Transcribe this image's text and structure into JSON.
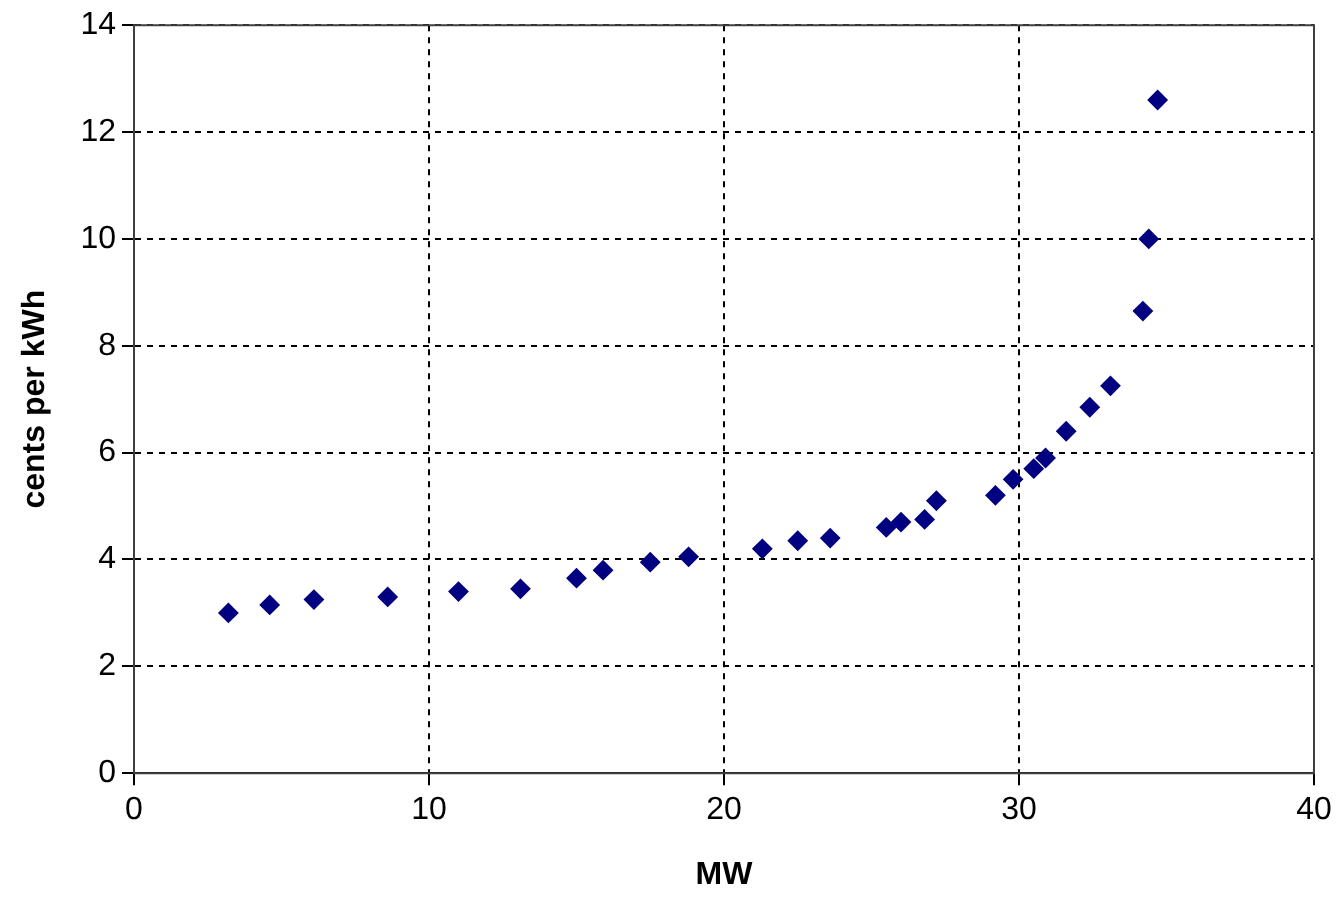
{
  "chart_data": {
    "type": "scatter",
    "xlabel": "MW",
    "ylabel": "cents per kWh",
    "x": [
      3.2,
      4.6,
      6.1,
      8.6,
      11.0,
      13.1,
      15.0,
      15.9,
      17.5,
      18.8,
      21.3,
      22.5,
      23.6,
      25.5,
      26.0,
      26.8,
      27.2,
      29.2,
      29.8,
      30.5,
      30.9,
      31.6,
      32.4,
      33.1,
      34.2,
      34.4,
      34.7
    ],
    "series": [
      {
        "color": "#000080",
        "values": [
          3.0,
          3.15,
          3.25,
          3.3,
          3.4,
          3.45,
          3.65,
          3.8,
          3.95,
          4.05,
          4.2,
          4.35,
          4.4,
          4.6,
          4.7,
          4.75,
          5.1,
          5.2,
          5.5,
          5.7,
          5.9,
          6.4,
          6.85,
          7.25,
          8.65,
          10.0,
          12.6
        ]
      }
    ],
    "xlim": [
      0,
      40
    ],
    "xticks": [
      0,
      10,
      20,
      30,
      40
    ],
    "ylim": [
      0,
      14
    ],
    "yticks": [
      0,
      2,
      4,
      6,
      8,
      10,
      12,
      14
    ],
    "grid": true,
    "legend": false,
    "marker": "diamond"
  }
}
